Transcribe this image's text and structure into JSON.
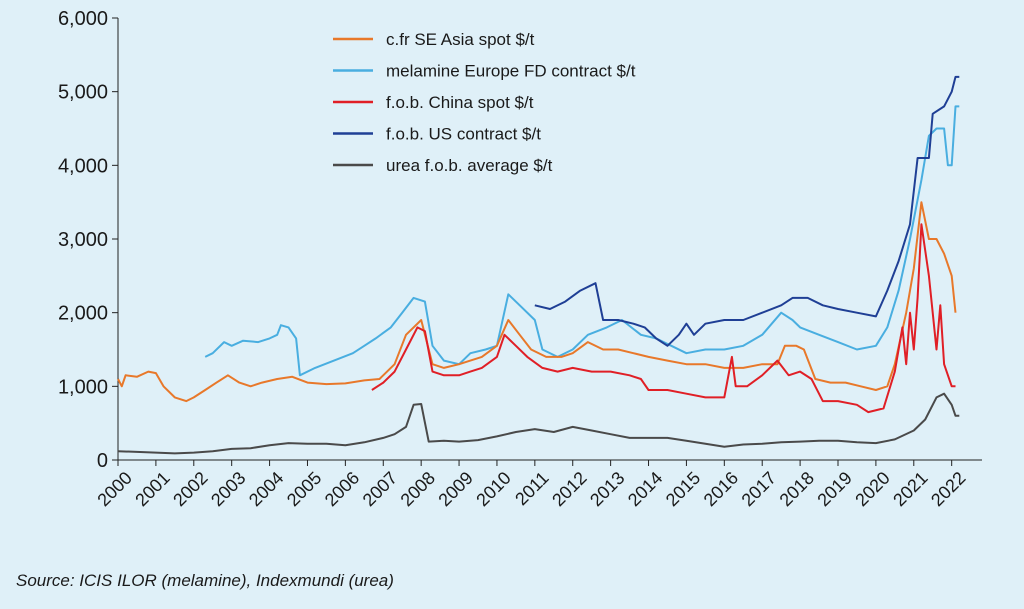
{
  "chart_data": {
    "type": "line",
    "ylim": [
      0,
      6000
    ],
    "y_ticks": [
      "0",
      "1,000",
      "2,000",
      "3,000",
      "4,000",
      "5,000",
      "6,000"
    ],
    "y_tick_values": [
      0,
      1000,
      2000,
      3000,
      4000,
      5000,
      6000
    ],
    "xlim": [
      2000,
      2022.8
    ],
    "x_ticks": [
      "2000",
      "2001",
      "2002",
      "2003",
      "2004",
      "2005",
      "2006",
      "2007",
      "2008",
      "2009",
      "2010",
      "2011",
      "2012",
      "2013",
      "2014",
      "2015",
      "2016",
      "2017",
      "2018",
      "2019",
      "2020",
      "2021",
      "2022"
    ],
    "legend_position": "top-center",
    "grid": false,
    "series": [
      {
        "name": "c.fr SE Asia spot $/t",
        "color": "#e8782a",
        "points": [
          [
            2000.0,
            1100
          ],
          [
            2000.1,
            1000
          ],
          [
            2000.2,
            1150
          ],
          [
            2000.5,
            1130
          ],
          [
            2000.8,
            1200
          ],
          [
            2001.0,
            1180
          ],
          [
            2001.2,
            1000
          ],
          [
            2001.5,
            850
          ],
          [
            2001.8,
            800
          ],
          [
            2002.0,
            850
          ],
          [
            2002.3,
            950
          ],
          [
            2002.6,
            1050
          ],
          [
            2002.9,
            1150
          ],
          [
            2003.2,
            1050
          ],
          [
            2003.5,
            1000
          ],
          [
            2003.8,
            1050
          ],
          [
            2004.2,
            1100
          ],
          [
            2004.6,
            1130
          ],
          [
            2005.0,
            1050
          ],
          [
            2005.5,
            1030
          ],
          [
            2006.0,
            1040
          ],
          [
            2006.5,
            1080
          ],
          [
            2006.9,
            1100
          ],
          [
            2007.3,
            1300
          ],
          [
            2007.6,
            1700
          ],
          [
            2008.0,
            1900
          ],
          [
            2008.3,
            1300
          ],
          [
            2008.6,
            1250
          ],
          [
            2009.0,
            1300
          ],
          [
            2009.3,
            1350
          ],
          [
            2009.6,
            1400
          ],
          [
            2010.0,
            1550
          ],
          [
            2010.3,
            1900
          ],
          [
            2010.6,
            1700
          ],
          [
            2010.9,
            1500
          ],
          [
            2011.3,
            1400
          ],
          [
            2011.7,
            1400
          ],
          [
            2012.0,
            1450
          ],
          [
            2012.4,
            1600
          ],
          [
            2012.8,
            1500
          ],
          [
            2013.2,
            1500
          ],
          [
            2013.6,
            1450
          ],
          [
            2014.0,
            1400
          ],
          [
            2014.5,
            1350
          ],
          [
            2015.0,
            1300
          ],
          [
            2015.5,
            1300
          ],
          [
            2016.0,
            1250
          ],
          [
            2016.5,
            1250
          ],
          [
            2017.0,
            1300
          ],
          [
            2017.4,
            1300
          ],
          [
            2017.6,
            1550
          ],
          [
            2017.9,
            1550
          ],
          [
            2018.1,
            1500
          ],
          [
            2018.4,
            1100
          ],
          [
            2018.8,
            1050
          ],
          [
            2019.2,
            1050
          ],
          [
            2019.6,
            1000
          ],
          [
            2020.0,
            950
          ],
          [
            2020.3,
            1000
          ],
          [
            2020.5,
            1300
          ],
          [
            2020.8,
            2000
          ],
          [
            2021.0,
            2600
          ],
          [
            2021.2,
            3500
          ],
          [
            2021.4,
            3000
          ],
          [
            2021.6,
            3000
          ],
          [
            2021.8,
            2800
          ],
          [
            2022.0,
            2500
          ],
          [
            2022.1,
            2000
          ]
        ]
      },
      {
        "name": "melamine Europe FD contract $/t",
        "color": "#49aee0",
        "points": [
          [
            2002.3,
            1400
          ],
          [
            2002.5,
            1450
          ],
          [
            2002.8,
            1600
          ],
          [
            2003.0,
            1550
          ],
          [
            2003.3,
            1620
          ],
          [
            2003.7,
            1600
          ],
          [
            2004.0,
            1650
          ],
          [
            2004.2,
            1700
          ],
          [
            2004.3,
            1830
          ],
          [
            2004.5,
            1800
          ],
          [
            2004.7,
            1650
          ],
          [
            2004.8,
            1150
          ],
          [
            2005.2,
            1250
          ],
          [
            2005.7,
            1350
          ],
          [
            2006.2,
            1450
          ],
          [
            2006.5,
            1550
          ],
          [
            2006.8,
            1650
          ],
          [
            2007.2,
            1800
          ],
          [
            2007.5,
            2000
          ],
          [
            2007.8,
            2200
          ],
          [
            2008.1,
            2150
          ],
          [
            2008.3,
            1550
          ],
          [
            2008.6,
            1350
          ],
          [
            2009.0,
            1300
          ],
          [
            2009.3,
            1450
          ],
          [
            2009.7,
            1500
          ],
          [
            2010.0,
            1550
          ],
          [
            2010.3,
            2250
          ],
          [
            2010.6,
            2100
          ],
          [
            2011.0,
            1900
          ],
          [
            2011.2,
            1500
          ],
          [
            2011.6,
            1400
          ],
          [
            2012.0,
            1500
          ],
          [
            2012.4,
            1700
          ],
          [
            2012.9,
            1800
          ],
          [
            2013.3,
            1900
          ],
          [
            2013.8,
            1700
          ],
          [
            2014.2,
            1650
          ],
          [
            2014.6,
            1550
          ],
          [
            2015.0,
            1450
          ],
          [
            2015.5,
            1500
          ],
          [
            2016.0,
            1500
          ],
          [
            2016.5,
            1550
          ],
          [
            2017.0,
            1700
          ],
          [
            2017.5,
            2000
          ],
          [
            2017.8,
            1900
          ],
          [
            2018.0,
            1800
          ],
          [
            2018.5,
            1700
          ],
          [
            2019.0,
            1600
          ],
          [
            2019.5,
            1500
          ],
          [
            2020.0,
            1550
          ],
          [
            2020.3,
            1800
          ],
          [
            2020.6,
            2300
          ],
          [
            2020.9,
            3000
          ],
          [
            2021.2,
            3800
          ],
          [
            2021.4,
            4400
          ],
          [
            2021.6,
            4500
          ],
          [
            2021.8,
            4500
          ],
          [
            2021.9,
            4000
          ],
          [
            2022.0,
            4000
          ],
          [
            2022.1,
            4800
          ],
          [
            2022.2,
            4800
          ]
        ]
      },
      {
        "name": "f.o.b. China spot $/t",
        "color": "#e01f26",
        "points": [
          [
            2006.7,
            950
          ],
          [
            2007.0,
            1050
          ],
          [
            2007.3,
            1200
          ],
          [
            2007.6,
            1500
          ],
          [
            2007.9,
            1800
          ],
          [
            2008.1,
            1750
          ],
          [
            2008.3,
            1200
          ],
          [
            2008.6,
            1150
          ],
          [
            2009.0,
            1150
          ],
          [
            2009.3,
            1200
          ],
          [
            2009.6,
            1250
          ],
          [
            2010.0,
            1400
          ],
          [
            2010.2,
            1700
          ],
          [
            2010.5,
            1550
          ],
          [
            2010.8,
            1400
          ],
          [
            2011.2,
            1250
          ],
          [
            2011.6,
            1200
          ],
          [
            2012.0,
            1250
          ],
          [
            2012.5,
            1200
          ],
          [
            2013.0,
            1200
          ],
          [
            2013.5,
            1150
          ],
          [
            2013.8,
            1100
          ],
          [
            2014.0,
            950
          ],
          [
            2014.5,
            950
          ],
          [
            2015.0,
            900
          ],
          [
            2015.5,
            850
          ],
          [
            2016.0,
            850
          ],
          [
            2016.2,
            1400
          ],
          [
            2016.3,
            1000
          ],
          [
            2016.6,
            1000
          ],
          [
            2017.0,
            1150
          ],
          [
            2017.4,
            1350
          ],
          [
            2017.7,
            1150
          ],
          [
            2018.0,
            1200
          ],
          [
            2018.3,
            1100
          ],
          [
            2018.6,
            800
          ],
          [
            2019.0,
            800
          ],
          [
            2019.5,
            750
          ],
          [
            2019.8,
            650
          ],
          [
            2020.2,
            700
          ],
          [
            2020.5,
            1200
          ],
          [
            2020.7,
            1800
          ],
          [
            2020.8,
            1300
          ],
          [
            2020.9,
            2000
          ],
          [
            2021.0,
            1500
          ],
          [
            2021.1,
            2200
          ],
          [
            2021.2,
            3200
          ],
          [
            2021.4,
            2500
          ],
          [
            2021.6,
            1500
          ],
          [
            2021.7,
            2100
          ],
          [
            2021.8,
            1300
          ],
          [
            2022.0,
            1000
          ],
          [
            2022.1,
            1000
          ]
        ]
      },
      {
        "name": "f.o.b. US contract $/t",
        "color": "#1f3f95",
        "points": [
          [
            2011.0,
            2100
          ],
          [
            2011.4,
            2050
          ],
          [
            2011.8,
            2150
          ],
          [
            2012.2,
            2300
          ],
          [
            2012.6,
            2400
          ],
          [
            2012.8,
            1900
          ],
          [
            2013.2,
            1900
          ],
          [
            2013.6,
            1850
          ],
          [
            2013.9,
            1800
          ],
          [
            2014.2,
            1650
          ],
          [
            2014.5,
            1550
          ],
          [
            2014.8,
            1700
          ],
          [
            2015.0,
            1850
          ],
          [
            2015.2,
            1700
          ],
          [
            2015.5,
            1850
          ],
          [
            2016.0,
            1900
          ],
          [
            2016.5,
            1900
          ],
          [
            2017.0,
            2000
          ],
          [
            2017.5,
            2100
          ],
          [
            2017.8,
            2200
          ],
          [
            2018.2,
            2200
          ],
          [
            2018.6,
            2100
          ],
          [
            2019.0,
            2050
          ],
          [
            2019.5,
            2000
          ],
          [
            2020.0,
            1950
          ],
          [
            2020.3,
            2300
          ],
          [
            2020.6,
            2700
          ],
          [
            2020.9,
            3200
          ],
          [
            2021.1,
            4100
          ],
          [
            2021.4,
            4100
          ],
          [
            2021.5,
            4700
          ],
          [
            2021.8,
            4800
          ],
          [
            2022.0,
            5000
          ],
          [
            2022.1,
            5200
          ],
          [
            2022.2,
            5200
          ]
        ]
      },
      {
        "name": "urea f.o.b. average $/t",
        "color": "#4a4a4a",
        "points": [
          [
            2000.0,
            120
          ],
          [
            2000.5,
            110
          ],
          [
            2001.0,
            100
          ],
          [
            2001.5,
            90
          ],
          [
            2002.0,
            100
          ],
          [
            2002.5,
            120
          ],
          [
            2003.0,
            150
          ],
          [
            2003.5,
            160
          ],
          [
            2004.0,
            200
          ],
          [
            2004.5,
            230
          ],
          [
            2005.0,
            220
          ],
          [
            2005.5,
            220
          ],
          [
            2006.0,
            200
          ],
          [
            2006.5,
            240
          ],
          [
            2007.0,
            300
          ],
          [
            2007.3,
            350
          ],
          [
            2007.6,
            450
          ],
          [
            2007.8,
            750
          ],
          [
            2008.0,
            760
          ],
          [
            2008.2,
            250
          ],
          [
            2008.6,
            260
          ],
          [
            2009.0,
            250
          ],
          [
            2009.5,
            270
          ],
          [
            2010.0,
            320
          ],
          [
            2010.5,
            380
          ],
          [
            2011.0,
            420
          ],
          [
            2011.5,
            380
          ],
          [
            2012.0,
            450
          ],
          [
            2012.5,
            400
          ],
          [
            2013.0,
            350
          ],
          [
            2013.5,
            300
          ],
          [
            2014.0,
            300
          ],
          [
            2014.5,
            300
          ],
          [
            2015.0,
            260
          ],
          [
            2015.5,
            220
          ],
          [
            2016.0,
            180
          ],
          [
            2016.5,
            210
          ],
          [
            2017.0,
            220
          ],
          [
            2017.5,
            240
          ],
          [
            2018.0,
            250
          ],
          [
            2018.5,
            260
          ],
          [
            2019.0,
            260
          ],
          [
            2019.5,
            240
          ],
          [
            2020.0,
            230
          ],
          [
            2020.5,
            280
          ],
          [
            2021.0,
            400
          ],
          [
            2021.3,
            550
          ],
          [
            2021.6,
            850
          ],
          [
            2021.8,
            900
          ],
          [
            2022.0,
            750
          ],
          [
            2022.1,
            600
          ],
          [
            2022.2,
            600
          ]
        ]
      }
    ]
  },
  "source_note": "Source: ICIS ILOR (melamine), Indexmundi (urea)"
}
